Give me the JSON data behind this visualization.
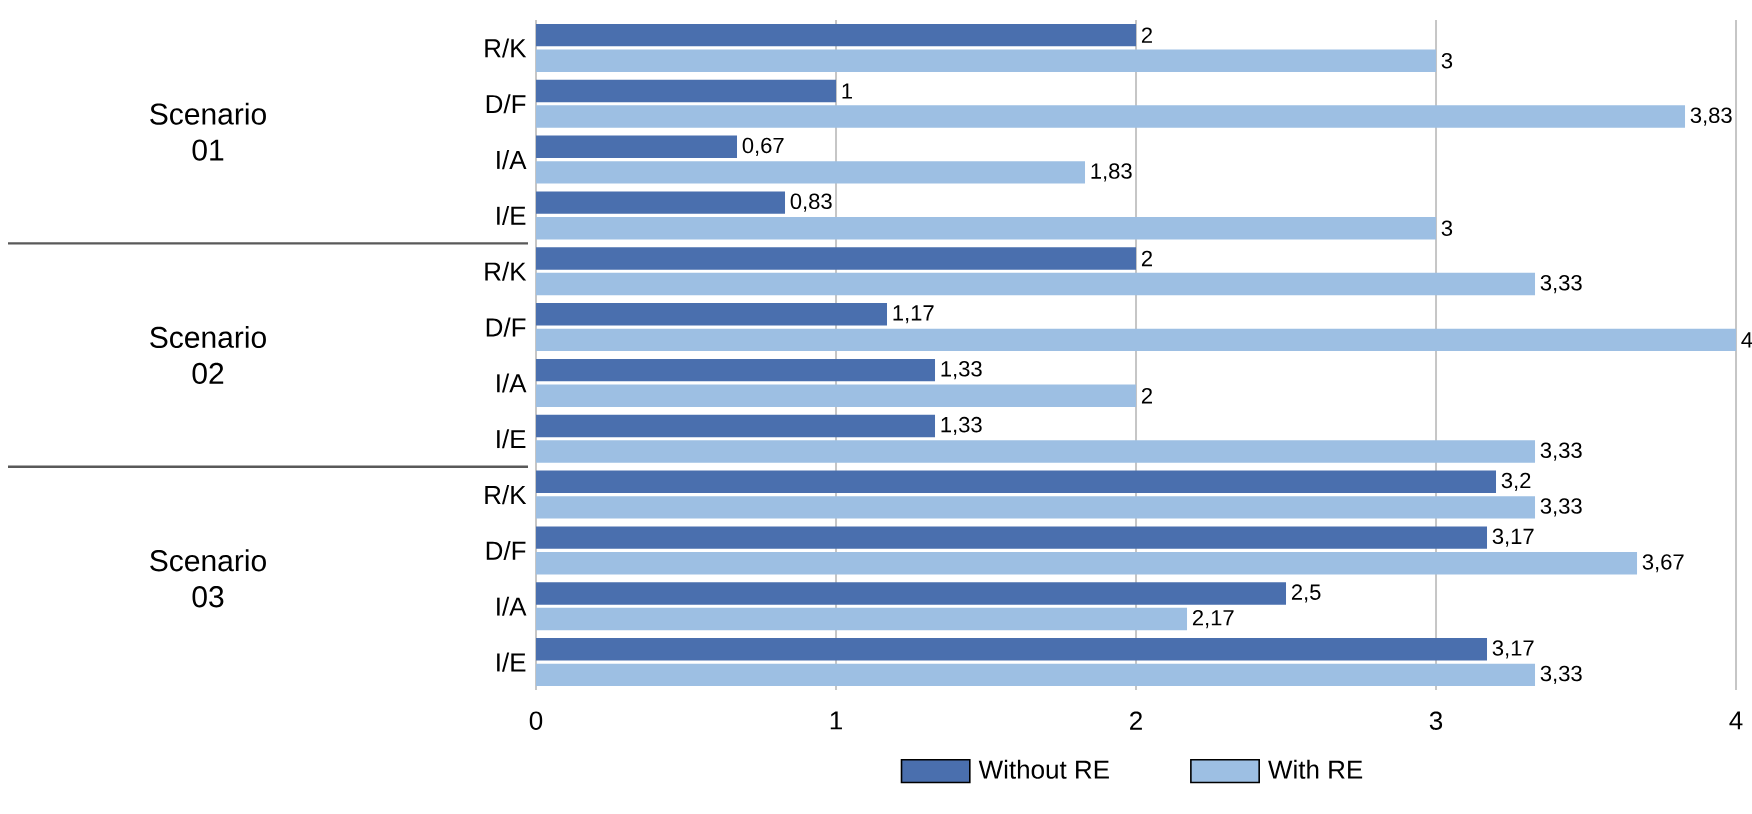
{
  "chart_data": {
    "type": "bar",
    "orientation": "horizontal",
    "categories": [
      "R/K",
      "D/F",
      "I/A",
      "I/E",
      "R/K",
      "D/F",
      "I/A",
      "I/E",
      "R/K",
      "D/F",
      "I/A",
      "I/E"
    ],
    "series": [
      {
        "name": "Without RE",
        "color": "#4a6fae",
        "values": [
          2,
          1,
          0.67,
          0.83,
          2,
          1.17,
          1.33,
          1.33,
          3.2,
          3.17,
          2.5,
          3.17
        ],
        "value_labels": [
          "2",
          "1",
          "0,67",
          "0,83",
          "2",
          "1,17",
          "1,33",
          "1,33",
          "3,2",
          "3,17",
          "2,5",
          "3,17"
        ]
      },
      {
        "name": "With RE",
        "color": "#9dbfe3",
        "values": [
          3,
          3.83,
          1.83,
          3,
          3.33,
          4,
          2,
          3.33,
          3.33,
          3.67,
          2.17,
          3.33
        ],
        "value_labels": [
          "3",
          "3,83",
          "1,83",
          "3",
          "3,33",
          "4",
          "2",
          "3,33",
          "3,33",
          "3,67",
          "2,17",
          "3,33"
        ]
      }
    ],
    "annotations": [
      "Scenario 01",
      "Scenario 02",
      "Scenario 03"
    ],
    "xlim": [
      0,
      4
    ],
    "xticks": [
      0,
      1,
      2,
      3,
      4
    ],
    "grid": "x",
    "legend": "bottom"
  }
}
